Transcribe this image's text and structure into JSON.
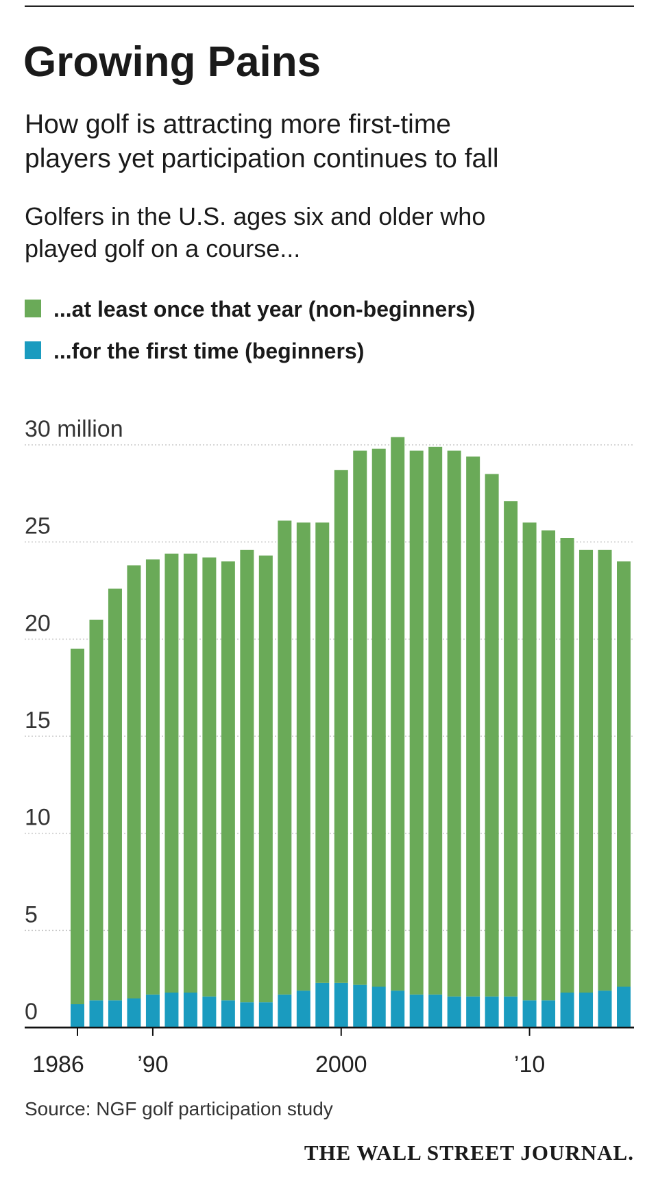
{
  "chart_data": {
    "type": "stacked-bar",
    "title": "Growing Pains",
    "subtitle": [
      "How golf is attracting more first-time",
      "players yet participation continues to fall"
    ],
    "description": [
      "Golfers in the U.S. ages six and older who",
      "played golf on a course..."
    ],
    "categories": [
      "1986",
      null,
      null,
      null,
      "’90",
      null,
      null,
      null,
      null,
      null,
      null,
      null,
      null,
      null,
      "2000",
      null,
      null,
      null,
      null,
      null,
      null,
      null,
      null,
      null,
      "’10",
      null,
      null,
      null,
      null,
      null
    ],
    "series": [
      {
        "name": "...for the first time (beginners)",
        "color": "#1a9bbf",
        "values": [
          1.2,
          1.4,
          1.4,
          1.5,
          1.7,
          1.8,
          1.8,
          1.6,
          1.4,
          1.3,
          1.3,
          1.7,
          1.9,
          2.3,
          2.3,
          2.2,
          2.1,
          1.9,
          1.7,
          1.7,
          1.6,
          1.6,
          1.6,
          1.6,
          1.4,
          1.4,
          1.8,
          1.8,
          1.9,
          2.1
        ]
      },
      {
        "name": "...at least once that year (non-beginners)",
        "color": "#6aaa58",
        "values": [
          18.3,
          19.6,
          21.2,
          22.3,
          22.4,
          22.6,
          22.6,
          22.6,
          22.6,
          23.3,
          23.0,
          24.4,
          24.1,
          23.7,
          26.4,
          27.5,
          27.7,
          28.5,
          28.0,
          28.2,
          28.1,
          27.8,
          26.9,
          25.5,
          24.6,
          24.2,
          23.4,
          22.8,
          22.7,
          21.9
        ]
      }
    ],
    "legend_order": [
      1,
      0
    ],
    "ylim": [
      0,
      30
    ],
    "yticks": [
      0,
      5,
      10,
      15,
      20,
      25,
      {
        "value": 30,
        "label": "30 million"
      }
    ],
    "grid": true,
    "source": "Source: NGF golf participation study",
    "credit": "THE WALL STREET JOURNAL."
  }
}
